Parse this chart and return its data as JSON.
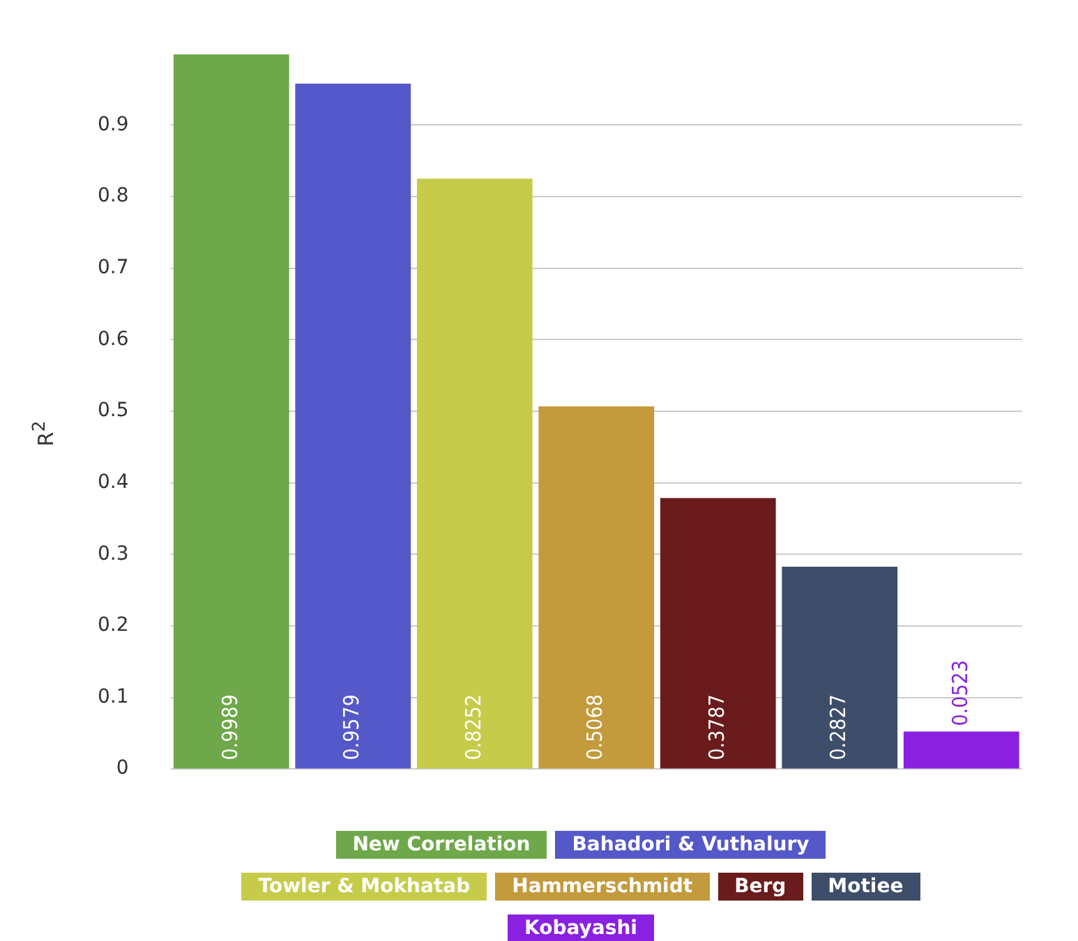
{
  "chart_data": {
    "type": "bar",
    "ylabel": "R$^{2}$",
    "categories": [
      null,
      null,
      null,
      null,
      null,
      null,
      null
    ],
    "series": [
      {
        "name": "New Correlation",
        "color": "#6fa84a",
        "values": [
          0.9989,
          null,
          null,
          null,
          null,
          null,
          null
        ]
      },
      {
        "name": "Bahadori & Vuthalury",
        "color": "#5558c8",
        "values": [
          null,
          0.9579,
          null,
          null,
          null,
          null,
          null
        ]
      },
      {
        "name": "Towler & Mokhatab",
        "color": "#c6cc4a",
        "values": [
          null,
          null,
          0.8252,
          null,
          null,
          null,
          null
        ]
      },
      {
        "name": "Hammerschmidt",
        "color": "#c39a3c",
        "values": [
          null,
          null,
          null,
          0.5068,
          null,
          null,
          null
        ]
      },
      {
        "name": "Berg",
        "color": "#6a1c1c",
        "values": [
          null,
          null,
          null,
          null,
          0.3787,
          null,
          null
        ]
      },
      {
        "name": "Motiee",
        "color": "#3e4d69",
        "values": [
          null,
          null,
          null,
          null,
          null,
          0.2827,
          null
        ]
      },
      {
        "name": "Kobayashi",
        "color": "#8a20e0",
        "values": [
          null,
          null,
          null,
          null,
          null,
          null,
          0.0523
        ]
      }
    ],
    "ylim": [
      0,
      1
    ],
    "yticks": [
      0,
      0.1,
      0.2,
      0.3,
      0.4,
      0.5,
      0.6,
      0.7,
      0.8,
      0.9
    ],
    "grid": "y",
    "legend": "bottom",
    "data_labels": true,
    "tick_labels": "y"
  }
}
